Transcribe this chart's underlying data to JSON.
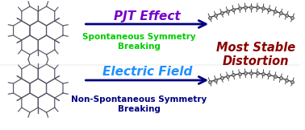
{
  "bg_color": "#ffffff",
  "pjt_text": "PJT Effect",
  "pjt_color": "#7700CC",
  "spontaneous_text": "Spontaneous Symmetry\nBreaking",
  "spontaneous_color": "#00CC00",
  "ef_text": "Electric Field",
  "ef_color": "#1E90FF",
  "non_spont_text": "Non-Spontaneous Symmetry\nBreaking",
  "non_spont_color": "#000080",
  "most_stable_text": "Most Stable\nDistortion",
  "most_stable_color": "#8B0000",
  "arrow_color": "#000080",
  "mol_color": "#333333",
  "mol_color2": "#555566"
}
